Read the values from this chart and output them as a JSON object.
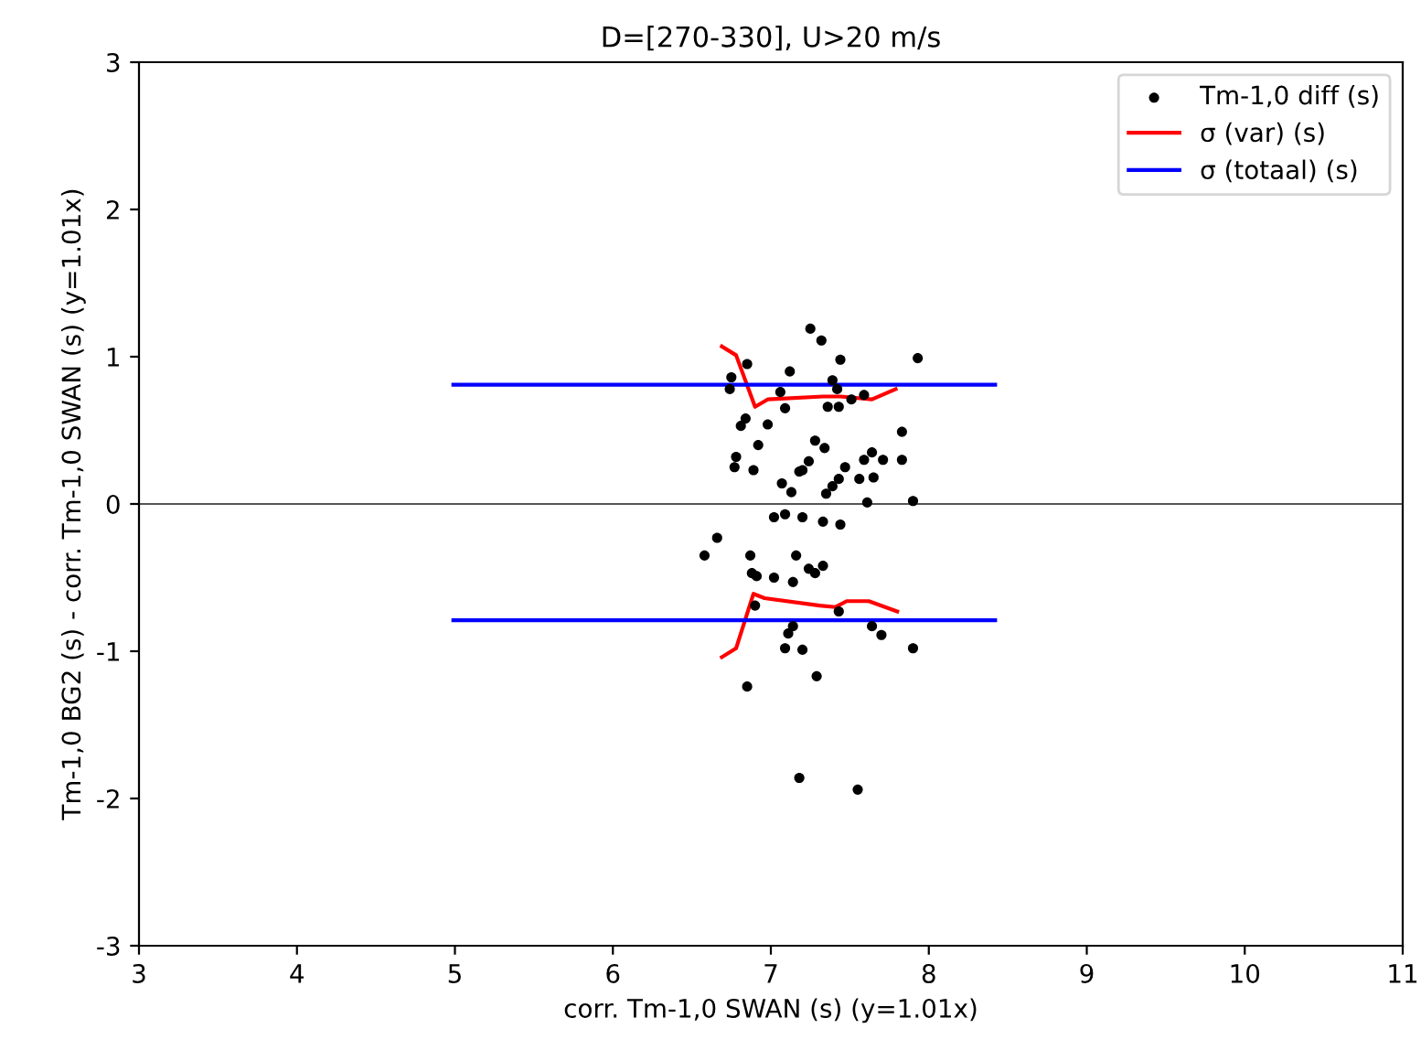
{
  "chart_data": {
    "type": "scatter",
    "title": "D=[270-330], U>20 m/s",
    "xlabel": "corr. Tm-1,0 SWAN (s) (y=1.01x)",
    "ylabel": "Tm-1,0 BG2 (s) - corr. Tm-1,0 SWAN (s) (y=1.01x)",
    "xlim": [
      3,
      11
    ],
    "xticks": [
      3,
      4,
      5,
      6,
      7,
      8,
      9,
      10,
      11
    ],
    "ylim": [
      -3,
      3
    ],
    "yticks": [
      -3,
      -2,
      -1,
      0,
      1,
      2,
      3
    ],
    "grid": false,
    "legend": "top right",
    "ref_lines": [
      {
        "axis": "y",
        "value": 0,
        "color": "#555555"
      }
    ],
    "series": [
      {
        "name": "Tm-1,0 diff (s)",
        "marker": "circle",
        "color": "#000000",
        "x": [
          7.25,
          7.32,
          6.85,
          7.44,
          7.93,
          6.75,
          6.74,
          7.12,
          7.06,
          7.39,
          7.42,
          7.59,
          7.51,
          7.36,
          7.43,
          7.09,
          6.84,
          6.81,
          6.98,
          7.83,
          7.28,
          7.34,
          6.92,
          6.78,
          6.77,
          6.89,
          7.64,
          7.59,
          7.71,
          7.83,
          7.24,
          7.2,
          7.18,
          7.47,
          7.43,
          7.65,
          7.56,
          7.07,
          7.13,
          7.39,
          7.35,
          7.61,
          7.9,
          7.02,
          7.09,
          7.2,
          7.33,
          7.44,
          6.66,
          6.58,
          6.87,
          7.16,
          6.88,
          6.91,
          7.02,
          7.14,
          7.24,
          7.28,
          7.33,
          6.9,
          7.14,
          7.11,
          7.43,
          7.64,
          7.7,
          7.09,
          7.2,
          7.9,
          7.29,
          6.85,
          7.18,
          7.55
        ],
        "values": [
          1.19,
          1.11,
          0.95,
          0.98,
          0.99,
          0.86,
          0.78,
          0.9,
          0.76,
          0.84,
          0.78,
          0.74,
          0.71,
          0.66,
          0.66,
          0.65,
          0.58,
          0.53,
          0.54,
          0.49,
          0.43,
          0.38,
          0.4,
          0.32,
          0.25,
          0.23,
          0.35,
          0.3,
          0.3,
          0.3,
          0.29,
          0.23,
          0.22,
          0.25,
          0.17,
          0.18,
          0.17,
          0.14,
          0.08,
          0.12,
          0.07,
          0.01,
          0.02,
          -0.09,
          -0.07,
          -0.09,
          -0.12,
          -0.14,
          -0.23,
          -0.35,
          -0.35,
          -0.35,
          -0.47,
          -0.49,
          -0.5,
          -0.53,
          -0.44,
          -0.47,
          -0.42,
          -0.69,
          -0.83,
          -0.88,
          -0.73,
          -0.83,
          -0.89,
          -0.98,
          -0.99,
          -0.98,
          -1.17,
          -1.24,
          -1.86,
          -1.94
        ]
      },
      {
        "name": "σ (var) (s)",
        "type": "line",
        "color": "#ff0000",
        "x": [
          6.69,
          6.78,
          6.9,
          6.98,
          7.33,
          7.44,
          7.64,
          7.79
        ],
        "values": [
          1.07,
          1.01,
          0.66,
          0.71,
          0.73,
          0.73,
          0.71,
          0.78
        ]
      },
      {
        "type": "line",
        "color": "#ff0000",
        "x": [
          6.69,
          6.78,
          6.89,
          6.96,
          7.31,
          7.41,
          7.48,
          7.62,
          7.8
        ],
        "values": [
          -1.04,
          -0.98,
          -0.61,
          -0.64,
          -0.69,
          -0.7,
          -0.66,
          -0.66,
          -0.73
        ]
      },
      {
        "name": "σ (totaal) (s)",
        "type": "line",
        "color": "#0000ff",
        "x": [
          4.99,
          8.42
        ],
        "values": [
          0.81,
          0.81
        ]
      },
      {
        "type": "line",
        "color": "#0000ff",
        "x": [
          4.99,
          8.42
        ],
        "values": [
          -0.79,
          -0.79
        ]
      }
    ]
  }
}
